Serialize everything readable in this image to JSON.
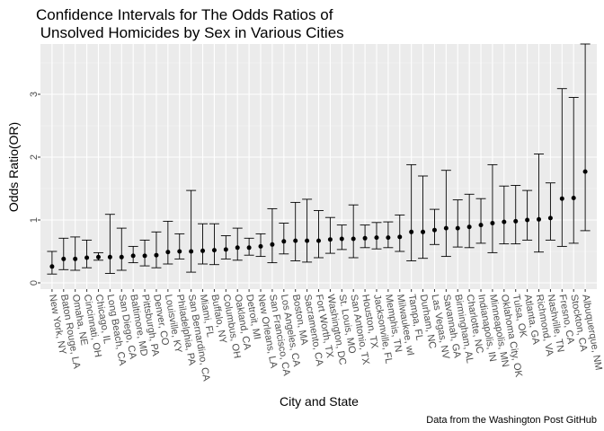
{
  "chart_data": {
    "type": "errorbar",
    "title_lines": [
      "Confidence Intervals for The Odds Ratios of",
      " Unsolved Homicides by Sex in Various Cities"
    ],
    "xlabel": "City and State",
    "ylabel": "Odds Ratio(OR)",
    "caption": "Data from the Washington Post GitHub",
    "ylim": [
      -0.1,
      3.8
    ],
    "yticks": [
      0,
      1,
      2,
      3
    ],
    "grid": true,
    "colors": {
      "panel": "#ebebeb",
      "grid_major": "#ffffff",
      "grid_minor": "#f5f5f5",
      "point": "#000000"
    },
    "categories": [
      "New York, NY",
      "Baton Rouge, LA",
      "Omaha, NE",
      "Cincinnati, OH",
      "Chicago, IL",
      "Long Beach, CA",
      "San Diego, CA",
      "Baltimore, MD",
      "Pittsburgh, PA",
      "Denver, CO",
      "Louisville, KY",
      "Philadelphia, PA",
      "San Bernardino, CA",
      "Miami, FL",
      "Buffalo, NY",
      "Columbus, OH",
      "Oakland, CA",
      "Detroit, MI",
      "New Orleans, LA",
      "San Francisco, CA",
      "Los Angeles, CA",
      "Boston, MA",
      "Sacramento, CA",
      "Fort Worth, TX",
      "Washington, DC",
      "St. Louis, MO",
      "San Antonio, TX",
      "Houston, TX",
      "Jacksonville, FL",
      "Memphis, TN",
      "Milwaukee, wI",
      "Tampa, FL",
      "Durham, NC",
      "Las Vegas, NV",
      "Savannah, GA",
      "Birmingham, AL",
      "Charlotte, NC",
      "Indianapolis, IN",
      "Minneapolis, MN",
      "Oklahoma City, OK",
      "Tulsa, OK",
      "Atlanta, GA",
      "Richmond, VA",
      "Nashville, TN",
      "Fresno, CA",
      "Stockton, CA",
      "Albuquerque, NM"
    ],
    "estimate": [
      0.26,
      0.38,
      0.38,
      0.4,
      0.41,
      0.41,
      0.41,
      0.43,
      0.43,
      0.44,
      0.49,
      0.5,
      0.5,
      0.51,
      0.52,
      0.53,
      0.56,
      0.56,
      0.58,
      0.61,
      0.66,
      0.67,
      0.67,
      0.67,
      0.69,
      0.7,
      0.7,
      0.71,
      0.72,
      0.72,
      0.73,
      0.81,
      0.81,
      0.84,
      0.87,
      0.87,
      0.89,
      0.92,
      0.95,
      0.97,
      0.98,
      1.0,
      1.01,
      1.03,
      1.34,
      1.35,
      1.77
    ],
    "lower": [
      0.14,
      0.21,
      0.2,
      0.24,
      0.36,
      0.15,
      0.2,
      0.32,
      0.27,
      0.24,
      0.3,
      0.38,
      0.17,
      0.3,
      0.29,
      0.38,
      0.36,
      0.44,
      0.42,
      0.32,
      0.46,
      0.35,
      0.33,
      0.4,
      0.47,
      0.53,
      0.4,
      0.56,
      0.54,
      0.56,
      0.5,
      0.35,
      0.39,
      0.61,
      0.42,
      0.57,
      0.56,
      0.63,
      0.48,
      0.62,
      0.62,
      0.68,
      0.49,
      0.68,
      0.58,
      0.63,
      0.83
    ],
    "upper": [
      0.5,
      0.71,
      0.73,
      0.68,
      0.48,
      1.09,
      0.87,
      0.58,
      0.68,
      0.81,
      0.98,
      0.78,
      1.47,
      0.94,
      0.94,
      0.75,
      0.87,
      0.71,
      0.78,
      1.18,
      0.95,
      1.28,
      1.33,
      1.15,
      1.04,
      0.92,
      1.24,
      0.92,
      0.96,
      0.97,
      1.08,
      1.88,
      1.7,
      1.17,
      1.79,
      1.32,
      1.41,
      1.34,
      1.88,
      1.54,
      1.55,
      1.47,
      2.05,
      1.59,
      3.09,
      2.95,
      3.8
    ]
  }
}
